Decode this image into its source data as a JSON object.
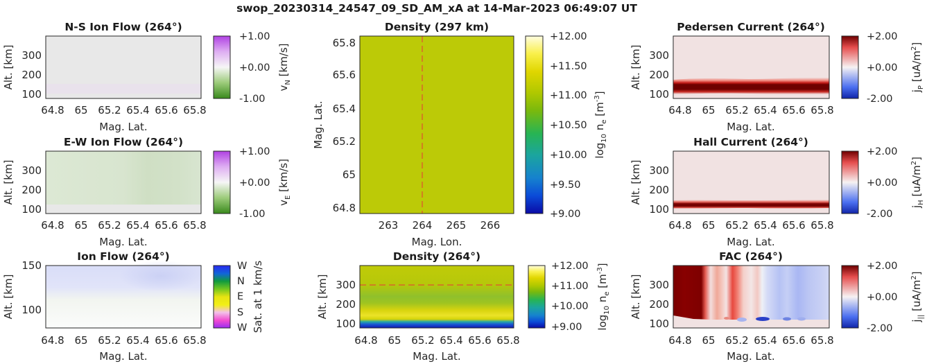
{
  "figure_title": "swop_20230314_24547_09_SD_AM_xA at 14-Mar-2023 06:49:07 UT",
  "colors": {
    "grey_bg": "#e8e8e8",
    "green": "#bcca07",
    "red_dashed": "#e8343a"
  },
  "panels": [
    {
      "title": "N-S Ion Flow (264°)",
      "xlabel": "Mag. Lat.",
      "ylabel": "Alt. [km]",
      "xticks": [
        "64.8",
        "65",
        "65.2",
        "65.4",
        "65.6",
        "65.8"
      ],
      "yticks": [
        "100",
        "200",
        "300"
      ],
      "cbar_ticks": [
        "+1.00",
        "+0.00",
        "-1.00"
      ],
      "cbar_label": "vN [km/s]",
      "cbar_label_main": "v",
      "cbar_label_sub": "N",
      "cbar_label_rest": " [km/s]"
    },
    {
      "title": "E-W Ion Flow (264°)",
      "xlabel": "Mag. Lat.",
      "ylabel": "Alt. [km]",
      "xticks": [
        "64.8",
        "65",
        "65.2",
        "65.4",
        "65.6",
        "65.8"
      ],
      "yticks": [
        "100",
        "200",
        "300"
      ],
      "cbar_ticks": [
        "+1.00",
        "+0.00",
        "-1.00"
      ],
      "cbar_label": "vE [km/s]",
      "cbar_label_main": "v",
      "cbar_label_sub": "E",
      "cbar_label_rest": " [km/s]"
    },
    {
      "title": "Ion Flow (264°)",
      "xlabel": "Mag. Lat.",
      "ylabel": "Alt. [km]",
      "xticks": [
        "64.8",
        "65",
        "65.2",
        "65.4",
        "65.6",
        "65.8"
      ],
      "yticks": [
        "100",
        "150"
      ],
      "cbar_ticks": [
        "W",
        "N",
        "E",
        "S",
        "W"
      ],
      "cbar_label": "Sat. at 1 km/s"
    },
    {
      "title": "Density (297 km)",
      "xlabel": "Mag. Lon.",
      "ylabel": "Mag. Lat.",
      "xticks": [
        "263",
        "264",
        "265",
        "266"
      ],
      "yticks": [
        "64.8",
        "65",
        "65.2",
        "65.4",
        "65.6",
        "65.8"
      ],
      "cbar_ticks": [
        "+12.00",
        "+11.50",
        "+11.00",
        "+10.50",
        "+10.00",
        "+9.50",
        "+9.00"
      ],
      "cbar_label": "log10 ne [m-3]"
    },
    {
      "title": "Density (264°)",
      "xlabel": "Mag. Lat.",
      "ylabel": "Alt. [km]",
      "xticks": [
        "64.8",
        "65",
        "65.2",
        "65.4",
        "65.6",
        "65.8"
      ],
      "yticks": [
        "100",
        "200",
        "300"
      ],
      "cbar_ticks": [
        "+12.00",
        "+11.00",
        "+10.00",
        "+9.00"
      ],
      "cbar_label": "log10 ne [m-3]"
    },
    {
      "title": "Pedersen Current (264°)",
      "xlabel": "Mag. Lat.",
      "ylabel": "Alt. [km]",
      "xticks": [
        "64.8",
        "65",
        "65.2",
        "65.4",
        "65.6",
        "65.8"
      ],
      "yticks": [
        "100",
        "200",
        "300"
      ],
      "cbar_ticks": [
        "+2.00",
        "+0.00",
        "-2.00"
      ],
      "cbar_label": "jP [uA/m2]"
    },
    {
      "title": "Hall Current (264°)",
      "xlabel": "Mag. Lat.",
      "ylabel": "Alt. [km]",
      "xticks": [
        "64.8",
        "65",
        "65.2",
        "65.4",
        "65.6",
        "65.8"
      ],
      "yticks": [
        "100",
        "200",
        "300"
      ],
      "cbar_ticks": [
        "+2.00",
        "+0.00",
        "-2.00"
      ],
      "cbar_label": "jH [uA/m2]"
    },
    {
      "title": "FAC (264°)",
      "xlabel": "Mag. Lat.",
      "ylabel": "Alt. [km]",
      "xticks": [
        "64.8",
        "65",
        "65.2",
        "65.4",
        "65.6",
        "65.8"
      ],
      "yticks": [
        "100",
        "200",
        "300"
      ],
      "cbar_ticks": [
        "+2.00",
        "+0.00",
        "-2.00"
      ],
      "cbar_label": "j|| [uA/m2]"
    }
  ],
  "chart_data": [
    {
      "type": "heatmap",
      "title": "N-S Ion Flow (264°)",
      "xlabel": "Mag. Lat.",
      "ylabel": "Alt. [km]",
      "xlim": [
        64.75,
        65.85
      ],
      "ylim": [
        80,
        400
      ],
      "clim": [
        -1.0,
        1.0
      ],
      "colormap": "green-white-purple",
      "description_values": "near zero everywhere; faint positive band near 130 km"
    },
    {
      "type": "heatmap",
      "title": "E-W Ion Flow (264°)",
      "xlabel": "Mag. Lat.",
      "ylabel": "Alt. [km]",
      "xlim": [
        64.75,
        65.85
      ],
      "ylim": [
        80,
        400
      ],
      "clim": [
        -1.0,
        1.0
      ],
      "colormap": "green-white-purple",
      "description_values": "weak negative (about -0.15) above 120 km, zero below"
    },
    {
      "type": "heatmap",
      "title": "Ion Flow (264°)",
      "xlabel": "Mag. Lat.",
      "ylabel": "Alt. [km]",
      "xlim": [
        64.75,
        65.85
      ],
      "ylim": [
        80,
        150
      ],
      "colormap": "direction wheel (W,N,E,S,W)",
      "description_values": "faint westward/northward flow above 125 km"
    },
    {
      "type": "heatmap",
      "title": "Density (297 km)",
      "xlabel": "Mag. Lon.",
      "ylabel": "Mag. Lat.",
      "xlim": [
        262.2,
        266.8
      ],
      "ylim": [
        64.75,
        65.85
      ],
      "clim": [
        9.0,
        12.0
      ],
      "colormap": "parula",
      "description_values": "log10 ne about 11.2 everywhere",
      "reference_line_x": 264
    },
    {
      "type": "heatmap",
      "title": "Density (264°)",
      "xlabel": "Mag. Lat.",
      "ylabel": "Alt. [km]",
      "xlim": [
        64.75,
        65.85
      ],
      "ylim": [
        80,
        400
      ],
      "clim": [
        9.0,
        12.0
      ],
      "colormap": "parula",
      "description_values": "about 11.2 at top, about 11.0 near 200 km, about 11.6 near 120 km, about 9.3 near 90 km",
      "reference_line_y": 300
    },
    {
      "type": "heatmap",
      "title": "Pedersen Current (264°)",
      "xlabel": "Mag. Lat.",
      "ylabel": "Alt. [km]",
      "xlim": [
        64.75,
        65.85
      ],
      "ylim": [
        80,
        400
      ],
      "clim": [
        -2.0,
        2.0
      ],
      "colormap": "blue-white-red",
      "description_values": "about +2 (saturated) in a band at 120-145 km, about +0.2 elsewhere"
    },
    {
      "type": "heatmap",
      "title": "Hall Current (264°)",
      "xlabel": "Mag. Lat.",
      "ylabel": "Alt. [km]",
      "xlim": [
        64.75,
        65.85
      ],
      "ylim": [
        80,
        400
      ],
      "clim": [
        -2.0,
        2.0
      ],
      "colormap": "blue-white-red",
      "description_values": "about +2 (saturated) in a thin band at 112-130 km, about +0.2 elsewhere"
    },
    {
      "type": "heatmap",
      "title": "FAC (264°)",
      "xlabel": "Mag. Lat.",
      "ylabel": "Alt. [km]",
      "xlim": [
        64.75,
        65.85
      ],
      "ylim": [
        80,
        400
      ],
      "clim": [
        -2.0,
        2.0
      ],
      "colormap": "blue-white-red",
      "x_profile": [
        [
          64.75,
          2.0
        ],
        [
          64.84,
          2.0
        ],
        [
          64.97,
          2.0
        ],
        [
          65.0,
          1.0
        ],
        [
          65.02,
          0.1
        ],
        [
          65.06,
          0.7
        ],
        [
          65.09,
          0.6
        ],
        [
          65.12,
          0.15
        ],
        [
          65.16,
          1.6
        ],
        [
          65.2,
          1.0
        ],
        [
          65.25,
          0.4
        ],
        [
          65.3,
          0.2
        ],
        [
          65.34,
          0.5
        ],
        [
          65.38,
          -0.1
        ],
        [
          65.42,
          -0.3
        ],
        [
          65.5,
          -0.5
        ],
        [
          65.55,
          -0.4
        ],
        [
          65.62,
          -0.7
        ],
        [
          65.7,
          -0.5
        ],
        [
          65.85,
          -0.3
        ]
      ]
    }
  ]
}
